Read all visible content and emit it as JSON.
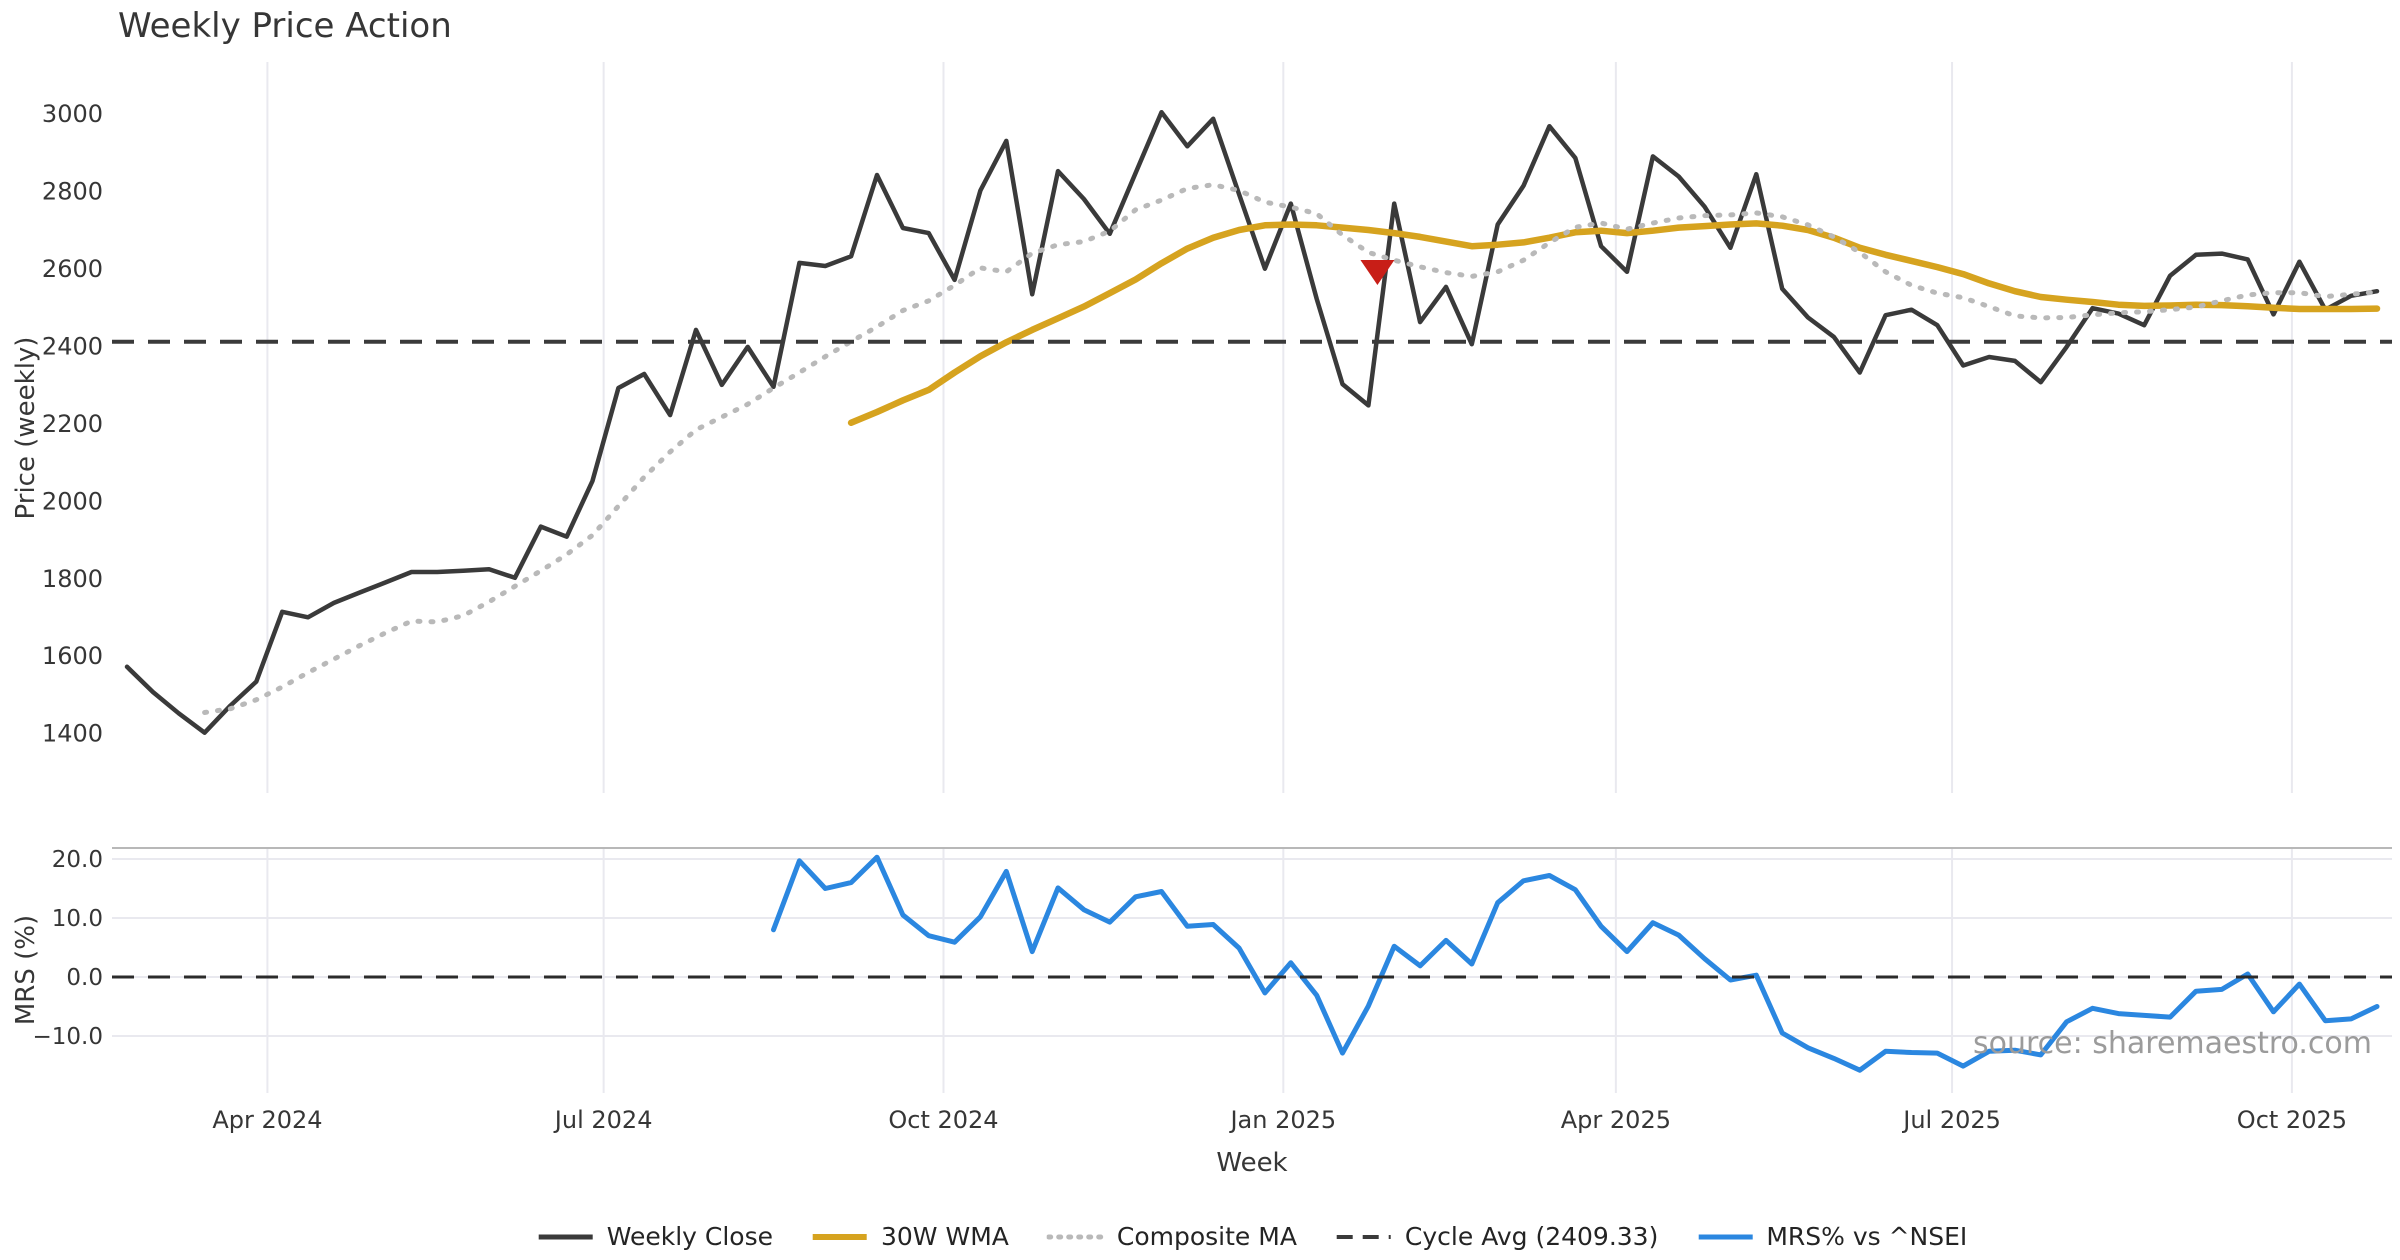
{
  "title": "Weekly Price Action",
  "watermark": "source: sharemaestro.com",
  "colors": {
    "background": "#ffffff",
    "weekly_close": "#3a3a3a",
    "wma_30w": "#d6a31f",
    "composite_ma": "#b9b9b9",
    "cycle_avg": "#3a3a3a",
    "mrs_line": "#2b87e0",
    "signal_marker": "#c81e17",
    "gridline": "#e9e9ef",
    "panel_top_spine": "#b8b8b8",
    "tick_text": "#363636",
    "watermark_text": "#9b9b9b"
  },
  "axes": {
    "xlabel": "Week",
    "xticks": [
      {
        "week": 5.43,
        "label": "Apr 2024"
      },
      {
        "week": 18.43,
        "label": "Jul 2024"
      },
      {
        "week": 31.57,
        "label": "Oct 2024"
      },
      {
        "week": 44.71,
        "label": "Jan 2025"
      },
      {
        "week": 57.57,
        "label": "Apr 2025"
      },
      {
        "week": 70.57,
        "label": "Jul 2025"
      },
      {
        "week": 83.71,
        "label": "Oct 2025"
      }
    ],
    "top_panel": {
      "ylabel": "Price (weekly)",
      "yticks": [
        3000,
        2800,
        2600,
        2400,
        2200,
        2000,
        1800,
        1600,
        1400
      ],
      "ylim": [
        1245,
        3132
      ],
      "grid": "vertical-only"
    },
    "bottom_panel": {
      "ylabel": "MRS (%)",
      "yticks": [
        {
          "v": 20,
          "label": "20.0"
        },
        {
          "v": 10,
          "label": "10.0"
        },
        {
          "v": 0,
          "label": "0.0"
        },
        {
          "v": -10,
          "label": "−10.0"
        }
      ],
      "ylim": [
        -19.7,
        21.9
      ],
      "grid": "horizontal-and-vertical"
    }
  },
  "legend": {
    "items": [
      {
        "label": "Weekly Close",
        "color": "#3a3a3a",
        "style": "solid",
        "lw": 5
      },
      {
        "label": "30W WMA",
        "color": "#d6a31f",
        "style": "solid",
        "lw": 6
      },
      {
        "label": "Composite MA",
        "color": "#b9b9b9",
        "style": "dotted",
        "lw": 5
      },
      {
        "label": "Cycle Avg (2409.33)",
        "color": "#3a3a3a",
        "style": "dashed",
        "lw": 4
      },
      {
        "label": "MRS% vs ^NSEI",
        "color": "#2b87e0",
        "style": "solid",
        "lw": 5
      }
    ]
  },
  "chart_data": {
    "type": "line",
    "title": "Weekly Price Action",
    "x_start_date": "2024-02-23",
    "x_frequency": "weekly",
    "weeks_total": 88,
    "panels": [
      {
        "name": "price",
        "ylabel": "Price (weekly)",
        "series": [
          {
            "name": "Weekly Close",
            "style": "solid",
            "color": "#3a3a3a",
            "lw": 4.5,
            "start_week": 0,
            "values": [
              1570,
              1505,
              1450,
              1400,
              1470,
              1532,
              1712,
              1698,
              1735,
              1762,
              1788,
              1815,
              1815,
              1818,
              1822,
              1800,
              1932,
              1906,
              2050,
              2290,
              2326,
              2220,
              2440,
              2298,
              2396,
              2293,
              2613,
              2605,
              2630,
              2840,
              2703,
              2690,
              2569,
              2800,
              2928,
              2532,
              2850,
              2778,
              2688,
              2845,
              3002,
              2914,
              2985,
              2790,
              2598,
              2766,
              2520,
              2300,
              2245,
              2766,
              2460,
              2551,
              2403,
              2712,
              2812,
              2966,
              2884,
              2656,
              2590,
              2888,
              2836,
              2758,
              2652,
              2842,
              2546,
              2472,
              2422,
              2330,
              2478,
              2492,
              2452,
              2348,
              2370,
              2360,
              2305,
              2396,
              2496,
              2482,
              2452,
              2580,
              2634,
              2637,
              2622,
              2480,
              2616,
              2492,
              2528,
              2540
            ]
          },
          {
            "name": "30W WMA",
            "style": "solid",
            "color": "#d6a31f",
            "lw": 6.5,
            "start_week": 28,
            "values": [
              2200,
              2228,
              2258,
              2285,
              2330,
              2372,
              2408,
              2440,
              2470,
              2500,
              2535,
              2570,
              2612,
              2650,
              2678,
              2698,
              2710,
              2712,
              2710,
              2704,
              2698,
              2690,
              2680,
              2668,
              2656,
              2660,
              2666,
              2678,
              2692,
              2696,
              2690,
              2696,
              2704,
              2708,
              2712,
              2715,
              2709,
              2698,
              2678,
              2652,
              2634,
              2618,
              2602,
              2584,
              2560,
              2540,
              2525,
              2518,
              2512,
              2505,
              2502,
              2503,
              2505,
              2504,
              2501,
              2497,
              2494,
              2494,
              2494,
              2495
            ]
          },
          {
            "name": "Composite MA",
            "style": "dotted",
            "color": "#b9b9b9",
            "lw": 5,
            "start_week": 3,
            "values": [
              1452,
              1462,
              1485,
              1518,
              1555,
              1590,
              1625,
              1658,
              1688,
              1686,
              1702,
              1738,
              1778,
              1818,
              1860,
              1910,
              1985,
              2060,
              2125,
              2182,
              2215,
              2248,
              2290,
              2330,
              2371,
              2410,
              2448,
              2490,
              2515,
              2555,
              2600,
              2590,
              2638,
              2660,
              2668,
              2695,
              2750,
              2775,
              2805,
              2815,
              2800,
              2770,
              2757,
              2740,
              2685,
              2640,
              2620,
              2603,
              2588,
              2578,
              2590,
              2620,
              2665,
              2705,
              2716,
              2700,
              2716,
              2729,
              2735,
              2737,
              2742,
              2732,
              2711,
              2680,
              2640,
              2590,
              2555,
              2535,
              2523,
              2500,
              2476,
              2471,
              2472,
              2479,
              2484,
              2487,
              2492,
              2499,
              2515,
              2530,
              2536,
              2536,
              2526,
              2532,
              2538
            ]
          },
          {
            "name": "Cycle Avg",
            "type": "hline",
            "value": 2409.33,
            "style": "dashed",
            "color": "#3a3a3a",
            "lw": 4
          }
        ],
        "marker": {
          "name": "sell-signal",
          "shape": "triangle-down",
          "color": "#c81e17",
          "week": 48.35,
          "price": 2592
        }
      },
      {
        "name": "mrs",
        "ylabel": "MRS (%)",
        "series": [
          {
            "name": "MRS% vs ^NSEI",
            "style": "solid",
            "color": "#2b87e0",
            "lw": 5,
            "start_week": 25,
            "values": [
              8.0,
              19.7,
              15.0,
              16.0,
              20.3,
              10.5,
              7.0,
              5.9,
              10.2,
              17.9,
              4.3,
              15.1,
              11.4,
              9.3,
              13.6,
              14.5,
              8.6,
              8.9,
              4.9,
              -2.7,
              2.4,
              -3.1,
              -12.9,
              -4.9,
              5.2,
              1.9,
              6.2,
              2.2,
              12.6,
              16.3,
              17.2,
              14.8,
              8.6,
              4.3,
              9.2,
              7.1,
              3.1,
              -0.5,
              0.3,
              -9.5,
              -12.0,
              -13.8,
              -15.8,
              -12.6,
              -12.8,
              -12.9,
              -15.1,
              -12.6,
              -12.4,
              -13.2,
              -7.6,
              -5.3,
              -6.2,
              -6.5,
              -6.8,
              -2.4,
              -2.1,
              0.5,
              -5.9,
              -1.2,
              -7.4,
              -7.1,
              -5.0
            ]
          },
          {
            "name": "Zero Line",
            "type": "hline",
            "value": 0,
            "style": "dashed",
            "color": "#2b2b2b",
            "lw": 3
          }
        ]
      }
    ]
  }
}
